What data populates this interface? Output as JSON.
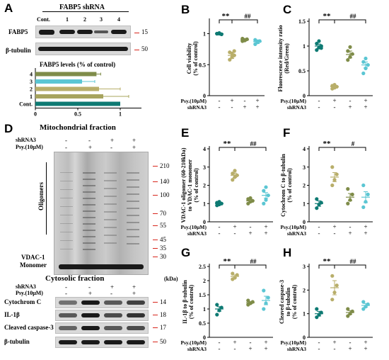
{
  "figure": {
    "panel_letters": [
      "A",
      "B",
      "C",
      "D",
      "E",
      "F",
      "G",
      "H"
    ],
    "colors": {
      "control": "#0e7a73",
      "psy": "#b8ae6a",
      "shrna": "#7f8c49",
      "both": "#5bc6d3",
      "mw_marker": "#d8261c"
    },
    "conditions": {
      "psy_label": "Psy.(10μM)",
      "shrna_label": "shRNA3",
      "psy_signs": [
        "-",
        "+",
        "-",
        "+"
      ],
      "shrna_signs": [
        "-",
        "-",
        "+",
        "+"
      ]
    },
    "panel_a": {
      "header": "FABP5 shRNA",
      "lanes": [
        "Cont.",
        "1",
        "2",
        "3",
        "4"
      ],
      "rows": [
        {
          "label": "FABP5",
          "mw": "15"
        },
        {
          "label": "β-tubulin",
          "mw": "50"
        }
      ],
      "bar_title": "FABP5 levels (% of control)",
      "bar_categories": [
        "4",
        "3",
        "2",
        "1",
        "Cont."
      ],
      "bar_xticks": [
        "0",
        "0.5",
        "1"
      ]
    },
    "panel_d": {
      "mito_title": "Mitochondrial fraction",
      "cyto_title": "Cytosolic fraction",
      "oligomer_label": "Oligomers",
      "monomer_label_1": "VDAC-1",
      "monomer_label_2": "Monomer",
      "mw_top": [
        "210",
        "140",
        "100",
        "70",
        "55",
        "45",
        "35",
        "30"
      ],
      "kda": "(kDa)",
      "cyto_rows": [
        {
          "label": "Cytochrom C",
          "mw": "14"
        },
        {
          "label": "IL-1β",
          "mw": "18"
        },
        {
          "label": "Cleaved caspase-3",
          "mw": "17"
        },
        {
          "label": "β-tubulin",
          "mw": "50"
        }
      ]
    },
    "sig": {
      "double_star": "**",
      "double_hash": "##",
      "single_hash": "#"
    }
  },
  "chart_data": [
    {
      "panel": "A",
      "type": "bar",
      "orientation": "horizontal",
      "categories": [
        "4",
        "3",
        "2",
        "1",
        "Cont."
      ],
      "values": [
        0.72,
        0.55,
        0.75,
        0.8,
        1.0
      ],
      "errors": [
        0.05,
        0.15,
        0.25,
        0.3,
        0
      ],
      "colors": [
        "#7f8c49",
        "#5bc6d3",
        "#b8ae6a",
        "#a7a45e",
        "#0e7a73"
      ],
      "xlim": [
        0,
        1.25
      ],
      "xlabel": "FABP5 levels (% of control)"
    },
    {
      "panel": "B",
      "type": "scatter",
      "ylabel": "Cell viability (% of control)",
      "ylim": [
        0,
        1.2
      ],
      "yticks": [
        0,
        0.5,
        1
      ],
      "groups": [
        {
          "mean": 1.0,
          "sem": 0.01,
          "points": [
            1.0,
            1.01,
            0.99,
            1.0,
            1.0,
            0.99
          ]
        },
        {
          "mean": 0.65,
          "sem": 0.05,
          "points": [
            0.58,
            0.62,
            0.65,
            0.7,
            0.68,
            0.72
          ]
        },
        {
          "mean": 0.9,
          "sem": 0.02,
          "points": [
            0.88,
            0.9,
            0.91,
            0.92,
            0.89
          ]
        },
        {
          "mean": 0.87,
          "sem": 0.03,
          "points": [
            0.83,
            0.86,
            0.88,
            0.9,
            0.87
          ]
        }
      ]
    },
    {
      "panel": "C",
      "type": "scatter",
      "ylabel": "Fluorescence intensity ratio (Red/Green)",
      "ylim": [
        0,
        1.5
      ],
      "yticks": [
        0,
        0.5,
        1,
        1.5
      ],
      "groups": [
        {
          "mean": 1.0,
          "sem": 0.04,
          "points": [
            0.92,
            0.97,
            1.0,
            1.05,
            1.1,
            0.96
          ]
        },
        {
          "mean": 0.18,
          "sem": 0.02,
          "points": [
            0.14,
            0.16,
            0.18,
            0.2,
            0.22
          ]
        },
        {
          "mean": 0.83,
          "sem": 0.07,
          "points": [
            0.72,
            0.78,
            0.84,
            0.9,
            0.98
          ]
        },
        {
          "mean": 0.62,
          "sem": 0.06,
          "points": [
            0.45,
            0.55,
            0.62,
            0.68,
            0.75
          ]
        }
      ]
    },
    {
      "panel": "E",
      "type": "scatter",
      "ylabel": "VDAC-1 oligomer (60-210kDa) to VDAC-1 monomer (% of control)",
      "ylim": [
        0,
        4
      ],
      "yticks": [
        0,
        1,
        2,
        3,
        4
      ],
      "groups": [
        {
          "mean": 1.0,
          "sem": 0.05,
          "points": [
            0.9,
            0.95,
            1.0,
            1.05,
            1.1
          ]
        },
        {
          "mean": 2.55,
          "sem": 0.12,
          "points": [
            2.3,
            2.45,
            2.55,
            2.65,
            2.8
          ]
        },
        {
          "mean": 1.15,
          "sem": 0.08,
          "points": [
            1.0,
            1.1,
            1.15,
            1.25,
            1.3
          ]
        },
        {
          "mean": 1.45,
          "sem": 0.15,
          "points": [
            1.0,
            1.2,
            1.45,
            1.7,
            1.9
          ]
        }
      ]
    },
    {
      "panel": "F",
      "type": "scatter",
      "ylabel": "Cytochrom C to β-tubulin (% of control)",
      "ylim": [
        0,
        4
      ],
      "yticks": [
        0,
        1,
        2,
        3,
        4
      ],
      "groups": [
        {
          "mean": 1.0,
          "sem": 0.15,
          "points": [
            0.75,
            0.95,
            1.05,
            1.25
          ]
        },
        {
          "mean": 2.45,
          "sem": 0.25,
          "points": [
            2.0,
            2.3,
            2.6,
            3.0
          ]
        },
        {
          "mean": 1.35,
          "sem": 0.2,
          "points": [
            1.0,
            1.2,
            1.5,
            1.8
          ]
        },
        {
          "mean": 1.35,
          "sem": 0.3,
          "points": [
            0.8,
            1.1,
            1.5,
            2.0
          ]
        }
      ]
    },
    {
      "panel": "G",
      "type": "scatter",
      "ylabel": "IL-1β to β-tubulin (% of control)",
      "ylim": [
        0,
        2.5
      ],
      "yticks": [
        0,
        0.5,
        1,
        1.5,
        2,
        2.5
      ],
      "groups": [
        {
          "mean": 1.0,
          "sem": 0.08,
          "points": [
            0.8,
            0.95,
            1.05,
            1.15
          ]
        },
        {
          "mean": 2.15,
          "sem": 0.05,
          "points": [
            2.05,
            2.1,
            2.2,
            2.25
          ]
        },
        {
          "mean": 1.22,
          "sem": 0.04,
          "points": [
            1.15,
            1.2,
            1.25,
            1.3
          ]
        },
        {
          "mean": 1.3,
          "sem": 0.15,
          "points": [
            1.0,
            1.2,
            1.4,
            1.65
          ]
        }
      ]
    },
    {
      "panel": "H",
      "type": "scatter",
      "ylabel": "Cleaved caspase-3 to β-tubulin (% of control)",
      "ylim": [
        0,
        3
      ],
      "yticks": [
        0,
        1,
        2,
        3
      ],
      "groups": [
        {
          "mean": 1.0,
          "sem": 0.1,
          "points": [
            0.85,
            0.95,
            1.05,
            1.2
          ]
        },
        {
          "mean": 2.1,
          "sem": 0.3,
          "points": [
            1.6,
            1.9,
            2.2,
            2.6
          ]
        },
        {
          "mean": 1.05,
          "sem": 0.08,
          "points": [
            0.9,
            1.0,
            1.1,
            1.2
          ]
        },
        {
          "mean": 1.35,
          "sem": 0.08,
          "points": [
            1.2,
            1.3,
            1.4,
            1.5
          ]
        }
      ]
    }
  ]
}
